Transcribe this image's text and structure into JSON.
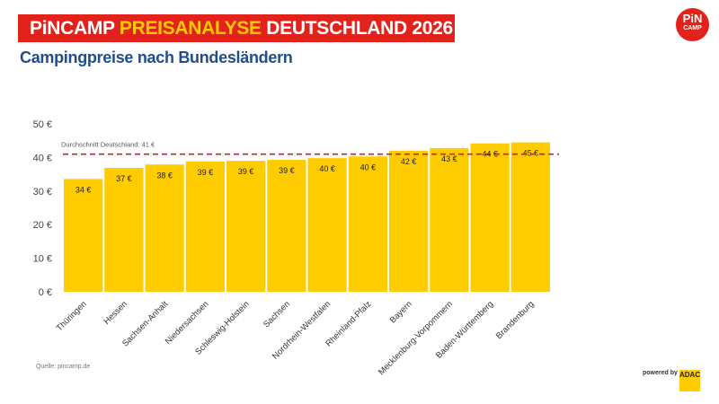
{
  "header": {
    "title_part1": "PiNCAMP ",
    "title_part2": "PREISANALYSE",
    "title_part3": " DEUTSCHLAND 2026",
    "subtitle": "Campingpreise nach Bundesländern",
    "logo_line1": "PiN",
    "logo_line2": "CAMP"
  },
  "footer": {
    "source": "Quelle: pincamp.de",
    "powered_by": "powered by",
    "partner": "ADAC"
  },
  "colors": {
    "bar": "#ffcc00",
    "title_bg": "#e3221b",
    "highlight": "#ffcc00",
    "subtitle": "#1f4e8c",
    "average_line": "#c8202f"
  },
  "chart_data": {
    "type": "bar",
    "categories": [
      "Thüringen",
      "Hessen",
      "Sachsen-Anhalt",
      "Niedersachsen",
      "Schleswig-Holstein",
      "Sachsen",
      "Nordrhein-Westfalen",
      "Rheinland-Pfalz",
      "Bayern",
      "Mecklenburg-Vorpommern",
      "Baden-Württemberg",
      "Brandenburg"
    ],
    "values": [
      33.6,
      36.9,
      37.9,
      38.8,
      39.0,
      39.3,
      39.8,
      40.3,
      42.0,
      42.8,
      44.2,
      44.5
    ],
    "data_labels": [
      "34 €",
      "37 €",
      "38 €",
      "39 €",
      "39 €",
      "39 €",
      "40 €",
      "40 €",
      "42 €",
      "43 €",
      "44 €",
      "45 €"
    ],
    "yticks": [
      0,
      10,
      20,
      30,
      40,
      50
    ],
    "ytick_labels": [
      "0 €",
      "10 €",
      "20 €",
      "30 €",
      "40 €",
      "50 €"
    ],
    "ylim": [
      0,
      50
    ],
    "average": {
      "value": 41,
      "label": "Durchschnitt Deutschland: 41 €"
    },
    "grid": false
  }
}
